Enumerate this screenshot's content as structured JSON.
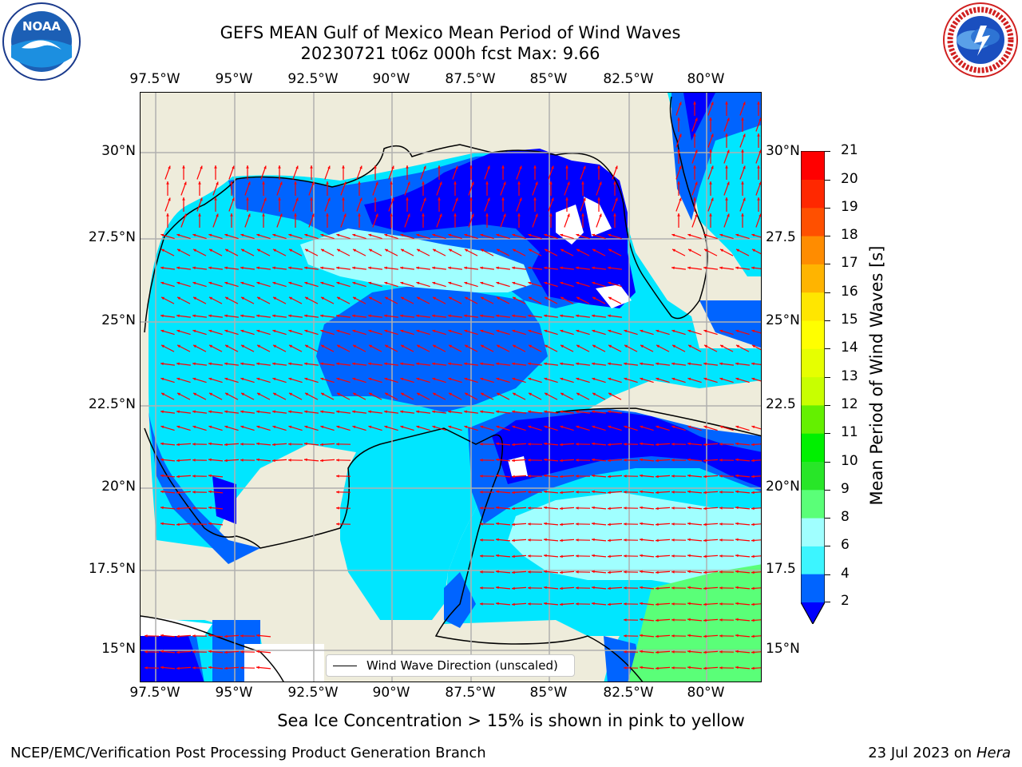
{
  "title": {
    "line1": "GEFS MEAN Gulf of Mexico Mean Period of Wind Waves",
    "line2": "20230721 t06z 000h fcst   Max: 9.66"
  },
  "map": {
    "lon_ticks": [
      "97.5°W",
      "95°W",
      "92.5°W",
      "90°W",
      "87.5°W",
      "85°W",
      "82.5°W",
      "80°W"
    ],
    "lat_ticks_left": [
      "30°N",
      "27.5°N",
      "25°N",
      "22.5°N",
      "20°N",
      "17.5°N",
      "15°N"
    ],
    "lat_ticks_right": [
      "30°N",
      "27.5",
      "25°N",
      "22.5",
      "20°N",
      "17.5",
      "15°N"
    ],
    "legend_label": "Wind Wave Direction (unscaled)",
    "land_color": "#eeecdb",
    "arrow_color": "#ff0000"
  },
  "colorbar": {
    "label": "Mean Period of Wind Waves [s]",
    "ticks": [
      "2",
      "4",
      "6",
      "8",
      "9",
      "10",
      "11",
      "12",
      "13",
      "14",
      "15",
      "16",
      "17",
      "18",
      "19",
      "20",
      "21"
    ],
    "colors": [
      "#0064ff",
      "#00e6ff",
      "#3cf5ff",
      "#a0ffff",
      "#5aff78",
      "#28e628",
      "#00f000",
      "#64f000",
      "#c8ff00",
      "#e6ff00",
      "#ffff00",
      "#ffe600",
      "#ffb400",
      "#ff8c00",
      "#ff5000",
      "#ff2800",
      "#ff0000"
    ],
    "underflow_color": "#0000ff"
  },
  "caption": "Sea Ice Concentration > 15% is shown in pink to yellow",
  "footer": {
    "left": "NCEP/EMC/Verification Post Processing Product Generation Branch",
    "right_date": "23 Jul 2023 on ",
    "right_machine": "Hera"
  },
  "logos": {
    "noaa_text": "NOAA",
    "nws_text": "NATIONAL WEATHER SERVICE"
  }
}
